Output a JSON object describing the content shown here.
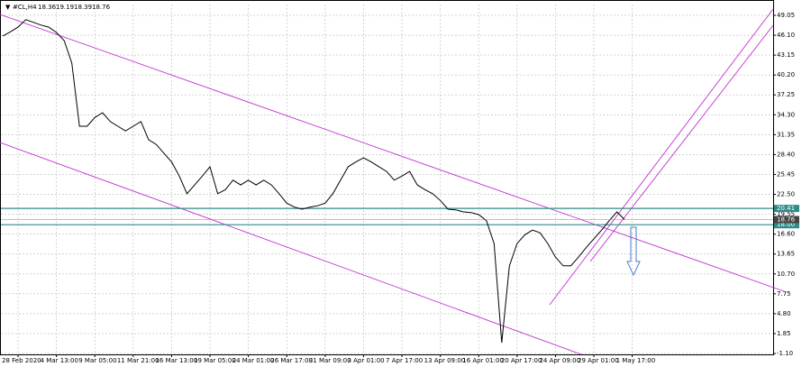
{
  "chart_data": {
    "type": "line",
    "symbol": "#CL,H4",
    "ohlc": [
      18.36,
      19.19,
      18.39,
      18.76
    ],
    "categories": [
      null,
      null,
      "28 Feb 2020",
      null,
      null,
      null,
      null,
      "4 Mar 13:00",
      null,
      null,
      null,
      null,
      "9 Mar 05:00",
      null,
      null,
      null,
      null,
      "11 Mar 21:00",
      null,
      null,
      null,
      null,
      "16 Mar 13:00",
      null,
      null,
      null,
      null,
      "19 Mar 05:00",
      null,
      null,
      null,
      null,
      "24 Mar 01:00",
      null,
      null,
      null,
      null,
      "26 Mar 17:00",
      null,
      null,
      null,
      null,
      "31 Mar 09:00",
      null,
      null,
      null,
      null,
      "3 Apr 01:00",
      null,
      null,
      null,
      null,
      "7 Apr 17:00",
      null,
      null,
      null,
      null,
      "13 Apr 09:00",
      null,
      null,
      null,
      null,
      "16 Apr 01:00",
      null,
      null,
      null,
      null,
      "20 Apr 17:00",
      null,
      null,
      null,
      null,
      "24 Apr 09:00",
      null,
      null,
      null,
      null,
      "29 Apr 01:00",
      null,
      null,
      null,
      null,
      "1 May 17:00"
    ],
    "values": [
      45.98,
      46.6,
      47.3,
      48.4,
      48.0,
      47.6,
      47.3,
      46.5,
      45.3,
      41.96,
      32.6,
      32.6,
      33.9,
      34.6,
      33.3,
      32.6,
      31.9,
      32.6,
      33.3,
      30.6,
      29.9,
      28.6,
      27.3,
      25.2,
      22.6,
      23.9,
      25.2,
      26.6,
      22.6,
      23.2,
      24.6,
      23.9,
      24.6,
      23.9,
      24.6,
      23.9,
      22.6,
      21.2,
      20.6,
      20.3,
      20.6,
      20.8,
      21.2,
      22.6,
      24.6,
      26.6,
      27.3,
      27.9,
      27.3,
      26.6,
      25.9,
      24.6,
      25.2,
      25.9,
      23.9,
      23.2,
      22.6,
      21.6,
      20.3,
      20.2,
      19.9,
      19.8,
      19.5,
      18.6,
      15.2,
      0.5,
      11.9,
      15.2,
      16.5,
      17.2,
      16.8,
      15.2,
      13.2,
      11.9,
      11.9,
      13.2,
      14.6,
      15.9,
      17.2,
      18.6,
      19.9,
      18.76,
      null
    ],
    "color": "#000000",
    "ylim": [
      -1.23,
      50.65
    ],
    "yticks": [
      49.05,
      {
        "value": 46.1,
        "label": "46.10"
      },
      43.15,
      {
        "value": 40.2,
        "label": "40.20"
      },
      37.25,
      {
        "value": 34.3,
        "label": "34.30"
      },
      31.35,
      {
        "value": 28.4,
        "label": "28.40"
      },
      25.45,
      {
        "value": 22.5,
        "label": "22.50"
      },
      19.55,
      {
        "value": 16.6,
        "label": "16.60"
      },
      13.65,
      {
        "value": 10.7,
        "label": "10.70"
      },
      7.75,
      {
        "value": 4.8,
        "label": "4.80"
      },
      1.85,
      {
        "value": -1.1,
        "label": "-1.10"
      }
    ],
    "levels": [
      20.41,
      {
        "value": 18,
        "label": "18.00"
      }
    ],
    "level_color": "#2e8b86",
    "last_price": 18.76,
    "grid": true
  }
}
